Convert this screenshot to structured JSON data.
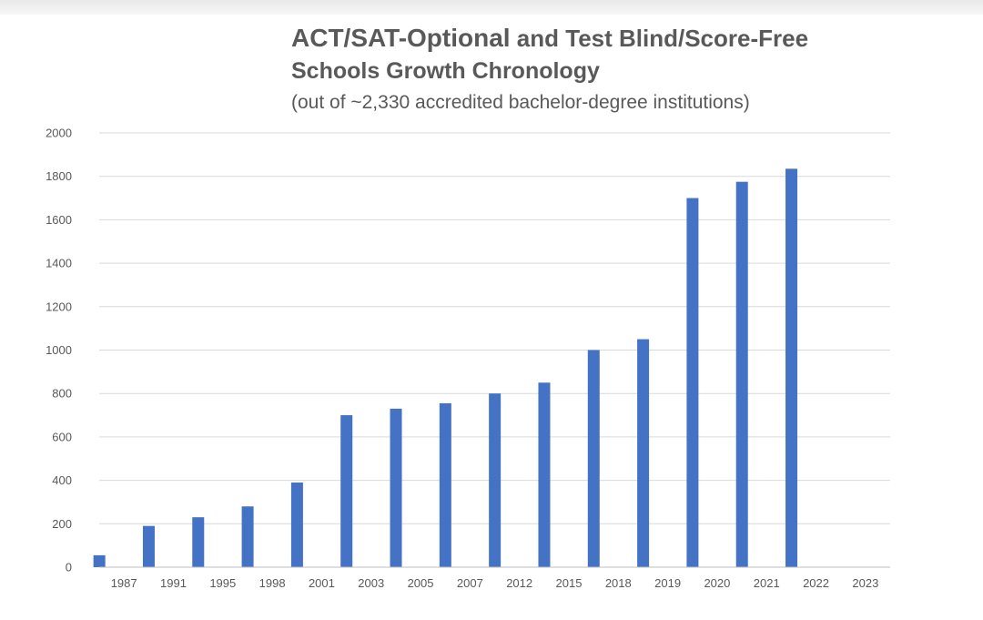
{
  "chart_data": {
    "type": "bar",
    "title_part1": "ACT/SAT-Optional",
    "title_part2": " and Test Blind/Score-Free",
    "title_line2": "Schools Growth Chronology",
    "subtitle": "(out of ~2,330 accredited bachelor-degree institutions)",
    "categories": [
      "1987",
      "1991",
      "1995",
      "1998",
      "2001",
      "2003",
      "2005",
      "2007",
      "2012",
      "2015",
      "2018",
      "2019",
      "2020",
      "2021",
      "2022",
      "2023"
    ],
    "values": [
      55,
      190,
      230,
      280,
      390,
      700,
      730,
      755,
      800,
      850,
      1000,
      1050,
      1700,
      1775,
      1835,
      0
    ],
    "ylim": [
      0,
      2000
    ],
    "yticks": [
      0,
      200,
      400,
      600,
      800,
      1000,
      1200,
      1400,
      1600,
      1800,
      2000
    ],
    "grid": true,
    "legend": "none",
    "xlabel": "",
    "ylabel": "",
    "colors": {
      "bar": "#4472C4",
      "grid": "#d9d9d9",
      "axis": "#bfbfbf",
      "text": "#595959"
    }
  }
}
